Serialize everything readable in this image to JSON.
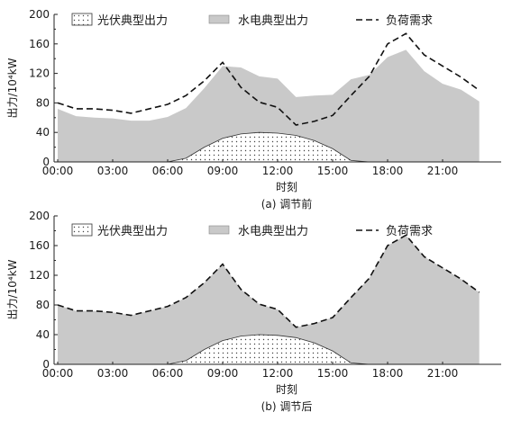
{
  "chart_data": [
    {
      "type": "area",
      "caption": "(a) 调节前",
      "xlabel": "时刻",
      "ylabel": "出力/10⁴kW",
      "ylim": [
        0,
        200
      ],
      "yticks": [
        0,
        40,
        80,
        120,
        160,
        200
      ],
      "xticks": [
        "00:00",
        "03:00",
        "06:00",
        "09:00",
        "12:00",
        "15:00",
        "18:00",
        "21:00"
      ],
      "x": [
        0,
        1,
        2,
        3,
        4,
        5,
        6,
        7,
        8,
        9,
        10,
        11,
        12,
        13,
        14,
        15,
        16,
        17,
        18,
        19,
        20,
        21,
        22,
        23
      ],
      "legend": [
        "光伏典型出力",
        "水电典型出力",
        "负荷需求"
      ],
      "legend_position": "top",
      "grid": false,
      "series": [
        {
          "name": "光伏典型出力",
          "style": "dotted-area",
          "values": [
            0,
            0,
            0,
            0,
            0,
            0,
            0,
            5,
            20,
            32,
            38,
            40,
            39,
            36,
            29,
            18,
            2,
            0,
            0,
            0,
            0,
            0,
            0,
            0
          ]
        },
        {
          "name": "水电典型出力",
          "style": "gray-area",
          "values": [
            72,
            62,
            60,
            59,
            56,
            56,
            61,
            73,
            100,
            130,
            128,
            116,
            113,
            88,
            90,
            91,
            112,
            118,
            142,
            152,
            123,
            106,
            98,
            82
          ]
        },
        {
          "name": "负荷需求",
          "style": "dashed-line",
          "values": [
            80,
            72,
            72,
            70,
            66,
            72,
            78,
            90,
            110,
            135,
            101,
            81,
            74,
            50,
            55,
            63,
            90,
            116,
            160,
            174,
            145,
            130,
            115,
            97
          ]
        }
      ]
    },
    {
      "type": "area",
      "caption": "(b) 调节后",
      "xlabel": "时刻",
      "ylabel": "出力/10⁴kW",
      "ylim": [
        0,
        200
      ],
      "yticks": [
        0,
        40,
        80,
        120,
        160,
        200
      ],
      "xticks": [
        "00:00",
        "03:00",
        "06:00",
        "09:00",
        "12:00",
        "15:00",
        "18:00",
        "21:00"
      ],
      "x": [
        0,
        1,
        2,
        3,
        4,
        5,
        6,
        7,
        8,
        9,
        10,
        11,
        12,
        13,
        14,
        15,
        16,
        17,
        18,
        19,
        20,
        21,
        22,
        23
      ],
      "legend": [
        "光伏典型出力",
        "水电典型出力",
        "负荷需求"
      ],
      "legend_position": "top",
      "grid": false,
      "series": [
        {
          "name": "光伏典型出力",
          "style": "dotted-area",
          "values": [
            0,
            0,
            0,
            0,
            0,
            0,
            0,
            5,
            20,
            32,
            38,
            40,
            39,
            36,
            29,
            18,
            2,
            0,
            0,
            0,
            0,
            0,
            0,
            0
          ]
        },
        {
          "name": "水电典型出力",
          "style": "gray-area",
          "values": [
            80,
            72,
            72,
            70,
            66,
            72,
            78,
            90,
            110,
            135,
            101,
            81,
            74,
            50,
            55,
            63,
            90,
            116,
            160,
            174,
            145,
            130,
            115,
            97
          ]
        },
        {
          "name": "负荷需求",
          "style": "dashed-line",
          "values": [
            80,
            72,
            72,
            70,
            66,
            72,
            78,
            90,
            110,
            135,
            101,
            81,
            74,
            50,
            55,
            63,
            90,
            116,
            160,
            174,
            145,
            130,
            115,
            97
          ]
        }
      ]
    }
  ],
  "colors": {
    "hydro_fill": "#c9c9c9",
    "pv_dot": "#444444",
    "load_line": "#111111",
    "axis": "#222222"
  }
}
